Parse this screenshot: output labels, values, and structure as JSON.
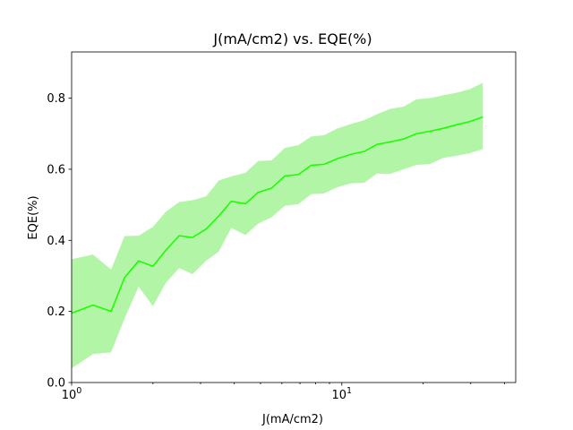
{
  "chart_data": {
    "type": "line",
    "title": "J(mA/cm2) vs. EQE(%)",
    "xlabel": "J(mA/cm2)",
    "ylabel": "EQE(%)",
    "xscale": "log",
    "xlim": [
      1,
      44
    ],
    "ylim": [
      0,
      0.93
    ],
    "x_tick_labels": [
      "10^0",
      "10^1"
    ],
    "y_tick_labels": [
      "0.0",
      "0.2",
      "0.4",
      "0.6",
      "0.8"
    ],
    "grid": false,
    "colors": {
      "line": "#1aff00",
      "band": "#b3f5a6"
    },
    "series": [
      {
        "x": [
          1.0,
          1.2,
          1.4,
          1.57,
          1.77,
          2.0,
          2.23,
          2.5,
          2.8,
          3.15,
          3.5,
          3.9,
          4.4,
          4.9,
          5.5,
          6.15,
          6.9,
          7.7,
          8.6,
          9.65,
          10.8,
          12.1,
          13.5,
          15.1,
          16.9,
          18.9,
          21.2,
          23.7,
          26.5,
          29.7,
          33.2
        ],
        "y": [
          0.195,
          0.218,
          0.2,
          0.295,
          0.342,
          0.327,
          0.372,
          0.413,
          0.408,
          0.432,
          0.468,
          0.51,
          0.503,
          0.535,
          0.547,
          0.581,
          0.585,
          0.611,
          0.614,
          0.63,
          0.642,
          0.65,
          0.67,
          0.677,
          0.685,
          0.7,
          0.707,
          0.715,
          0.725,
          0.734,
          0.747
        ],
        "lower": [
          0.04,
          0.08,
          0.085,
          0.18,
          0.27,
          0.215,
          0.28,
          0.322,
          0.305,
          0.343,
          0.368,
          0.435,
          0.415,
          0.447,
          0.465,
          0.497,
          0.502,
          0.53,
          0.532,
          0.55,
          0.56,
          0.562,
          0.588,
          0.587,
          0.6,
          0.612,
          0.615,
          0.632,
          0.638,
          0.645,
          0.657
        ],
        "upper": [
          0.347,
          0.36,
          0.318,
          0.412,
          0.413,
          0.438,
          0.48,
          0.508,
          0.513,
          0.524,
          0.568,
          0.58,
          0.59,
          0.623,
          0.625,
          0.66,
          0.668,
          0.692,
          0.696,
          0.715,
          0.727,
          0.738,
          0.755,
          0.77,
          0.776,
          0.797,
          0.8,
          0.808,
          0.815,
          0.825,
          0.843
        ]
      }
    ]
  }
}
